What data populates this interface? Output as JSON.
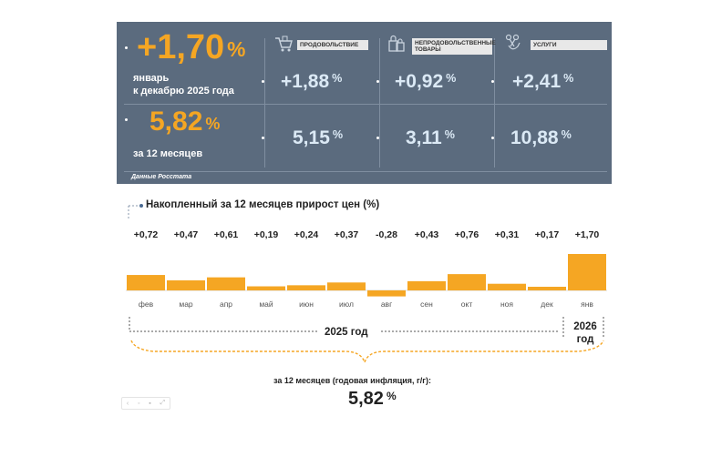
{
  "summary": {
    "monthly_value": "+1,70",
    "monthly_pct": "%",
    "monthly_caption_line1": "январь",
    "monthly_caption_line2": "к декабрю 2025 года",
    "annual_value": "5,82",
    "annual_pct": "%",
    "annual_caption": "за 12 месяцев",
    "source": "Данные Росстата"
  },
  "categories": [
    {
      "tag": "ПРОДОВОЛЬСТВИЕ",
      "icon": "shopping-cart-icon",
      "monthly": "+1,88",
      "annual": "5,15"
    },
    {
      "tag": "НЕПРОДОВОЛЬСТВЕННЫЕ ТОВАРЫ",
      "icon": "shopping-bags-icon",
      "monthly": "+0,92",
      "annual": "3,11"
    },
    {
      "tag": "УСЛУГИ",
      "icon": "scissors-hand-icon",
      "monthly": "+2,41",
      "annual": "10,88"
    }
  ],
  "pct_symbol": "%",
  "chart_title": "Накопленный за 12 месяцев прирост цен (%)",
  "chart_data": {
    "type": "bar",
    "title": "Накопленный за 12 месяцев прирост цен (%)",
    "categories": [
      "фев",
      "мар",
      "апр",
      "май",
      "июн",
      "июл",
      "авг",
      "сен",
      "окт",
      "ноя",
      "дек",
      "янв"
    ],
    "values": [
      0.72,
      0.47,
      0.61,
      0.19,
      0.24,
      0.37,
      -0.28,
      0.43,
      0.76,
      0.31,
      0.17,
      1.7
    ],
    "labels": [
      "+0,72",
      "+0,47",
      "+0,61",
      "+0,19",
      "+0,24",
      "+0,37",
      "-0,28",
      "+0,43",
      "+0,76",
      "+0,31",
      "+0,17",
      "+1,70"
    ],
    "colors": {
      "bar": "#f5a623"
    },
    "xlabel": "",
    "ylabel": "",
    "ylim": [
      -0.3,
      1.8
    ],
    "groups": [
      {
        "label": "2025 год",
        "span": [
          0,
          10
        ]
      },
      {
        "label": "2026 год",
        "span": [
          11,
          11
        ]
      }
    ]
  },
  "year_labels": {
    "y2025": "2025 год",
    "y2026_line1": "2026",
    "y2026_line2": "год"
  },
  "footer": {
    "caption": "за 12 месяцев (годовая инфляция, г/г):",
    "value": "5,82",
    "pct": "%"
  },
  "colors": {
    "panel": "#5b6b7e",
    "accent": "#f5a623",
    "light_text": "#dbe9f5"
  }
}
